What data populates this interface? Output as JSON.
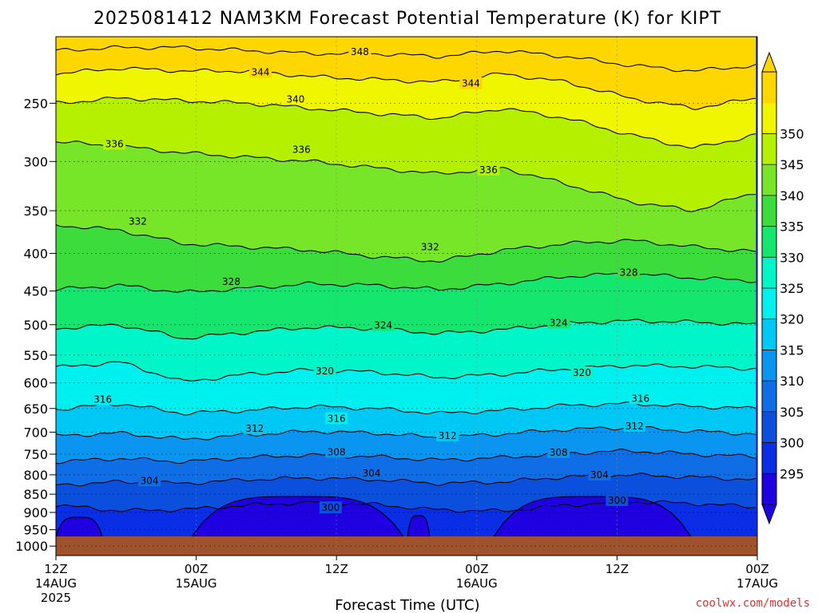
{
  "chart_data": {
    "type": "heatmap",
    "title": "2025081412 NAM3KM Forecast Potential Temperature (K) for KIPT",
    "xlabel": "Forecast Time (UTC)",
    "ylabel": "",
    "source": "coolwx.com/models",
    "x_ticks": [
      {
        "line1": "12Z",
        "line2": "14AUG",
        "line3": "2025",
        "hours": 0
      },
      {
        "line1": "00Z",
        "line2": "15AUG",
        "line3": "",
        "hours": 12
      },
      {
        "line1": "12Z",
        "line2": "",
        "line3": "",
        "hours": 24
      },
      {
        "line1": "00Z",
        "line2": "16AUG",
        "line3": "",
        "hours": 36
      },
      {
        "line1": "12Z",
        "line2": "",
        "line3": "",
        "hours": 48
      },
      {
        "line1": "00Z",
        "line2": "17AUG",
        "line3": "",
        "hours": 60
      }
    ],
    "xlim": [
      0,
      60
    ],
    "y_scale": "log-pressure",
    "ylim": [
      1030,
      203
    ],
    "y_ticks": [
      250,
      300,
      350,
      400,
      450,
      500,
      550,
      600,
      650,
      700,
      750,
      800,
      850,
      900,
      950,
      1000
    ],
    "grid": "dotted",
    "ground_color": "#a0522d",
    "colorbar": {
      "labels": [
        350,
        345,
        340,
        335,
        330,
        325,
        320,
        315,
        310,
        305,
        300,
        295
      ],
      "levels": [
        295,
        300,
        305,
        310,
        315,
        320,
        325,
        330,
        335,
        340,
        345,
        350
      ],
      "colors": [
        "#1e00e0",
        "#0a2ee6",
        "#0a50dc",
        "#0f6ee6",
        "#0a96f0",
        "#00c8f5",
        "#00f0f0",
        "#00f5c8",
        "#14e66e",
        "#3cdc3c",
        "#78e628",
        "#b4f000",
        "#f0f500",
        "#ffd700"
      ]
    },
    "contour_interval": 2,
    "contours": [
      {
        "theta": 300,
        "label": "300",
        "profile": [
          880,
          895,
          892,
          880,
          872,
          878,
          893,
          896,
          880,
          870,
          875,
          885
        ]
      },
      {
        "theta": 304,
        "label": "304",
        "profile": [
          826,
          818,
          822,
          812,
          808,
          812,
          822,
          818,
          805,
          800,
          806,
          812
        ]
      },
      {
        "theta": 308,
        "label": "308",
        "profile": [
          768,
          760,
          768,
          758,
          752,
          756,
          764,
          758,
          748,
          742,
          750,
          756
        ]
      },
      {
        "theta": 312,
        "label": "312",
        "profile": [
          708,
          702,
          716,
          706,
          698,
          702,
          712,
          704,
          694,
          690,
          698,
          704
        ]
      },
      {
        "theta": 316,
        "label": "316",
        "profile": [
          652,
          640,
          660,
          654,
          646,
          650,
          660,
          654,
          644,
          640,
          646,
          650
        ]
      },
      {
        "theta": 320,
        "label": "320",
        "profile": [
          572,
          562,
          598,
          584,
          576,
          580,
          590,
          584,
          574,
          568,
          570,
          574
        ]
      },
      {
        "theta": 324,
        "label": "324",
        "profile": [
          506,
          500,
          522,
          512,
          504,
          506,
          514,
          508,
          498,
          494,
          496,
          500
        ]
      },
      {
        "theta": 328,
        "label": "328",
        "profile": [
          448,
          442,
          452,
          446,
          440,
          442,
          448,
          440,
          430,
          426,
          432,
          436
        ]
      },
      {
        "theta": 332,
        "label": "332",
        "profile": [
          366,
          372,
          388,
          392,
          396,
          404,
          410,
          396,
          388,
          384,
          392,
          398
        ]
      },
      {
        "theta": 336,
        "label": "336",
        "profile": [
          282,
          286,
          292,
          296,
          300,
          306,
          312,
          306,
          322,
          340,
          350,
          330
        ]
      },
      {
        "theta": 340,
        "label": "340",
        "profile": [
          250,
          246,
          248,
          250,
          254,
          258,
          262,
          254,
          262,
          276,
          288,
          276
        ]
      },
      {
        "theta": 344,
        "label": "344",
        "profile": [
          228,
          224,
          226,
          226,
          230,
          232,
          234,
          228,
          234,
          246,
          254,
          246
        ]
      },
      {
        "theta": 348,
        "label": "348",
        "profile": [
          212,
          210,
          210,
          212,
          214,
          214,
          216,
          212,
          216,
          222,
          226,
          222
        ]
      }
    ],
    "contour_labels": [
      {
        "text": "348",
        "hours": 26,
        "p": 213
      },
      {
        "text": "344",
        "hours": 17.5,
        "p": 227
      },
      {
        "text": "344",
        "hours": 35.5,
        "p": 235
      },
      {
        "text": "340",
        "hours": 20.5,
        "p": 247
      },
      {
        "text": "336",
        "hours": 5,
        "p": 284
      },
      {
        "text": "336",
        "hours": 21,
        "p": 289
      },
      {
        "text": "336",
        "hours": 37,
        "p": 308
      },
      {
        "text": "332",
        "hours": 7,
        "p": 362
      },
      {
        "text": "332",
        "hours": 32,
        "p": 392
      },
      {
        "text": "328",
        "hours": 15,
        "p": 437
      },
      {
        "text": "328",
        "hours": 49,
        "p": 425
      },
      {
        "text": "324",
        "hours": 28,
        "p": 501
      },
      {
        "text": "324",
        "hours": 43,
        "p": 497
      },
      {
        "text": "320",
        "hours": 23,
        "p": 578
      },
      {
        "text": "320",
        "hours": 45,
        "p": 581
      },
      {
        "text": "316",
        "hours": 4,
        "p": 632
      },
      {
        "text": "316",
        "hours": 24,
        "p": 671
      },
      {
        "text": "316",
        "hours": 50,
        "p": 630
      },
      {
        "text": "312",
        "hours": 17,
        "p": 692
      },
      {
        "text": "312",
        "hours": 33.5,
        "p": 708
      },
      {
        "text": "312",
        "hours": 49.5,
        "p": 687
      },
      {
        "text": "308",
        "hours": 24,
        "p": 745
      },
      {
        "text": "308",
        "hours": 43,
        "p": 746
      },
      {
        "text": "304",
        "hours": 27,
        "p": 796
      },
      {
        "text": "304",
        "hours": 46.5,
        "p": 800
      },
      {
        "text": "304",
        "hours": 8,
        "p": 815
      },
      {
        "text": "300",
        "hours": 23.5,
        "p": 887
      },
      {
        "text": "300",
        "hours": 48,
        "p": 867
      }
    ]
  }
}
